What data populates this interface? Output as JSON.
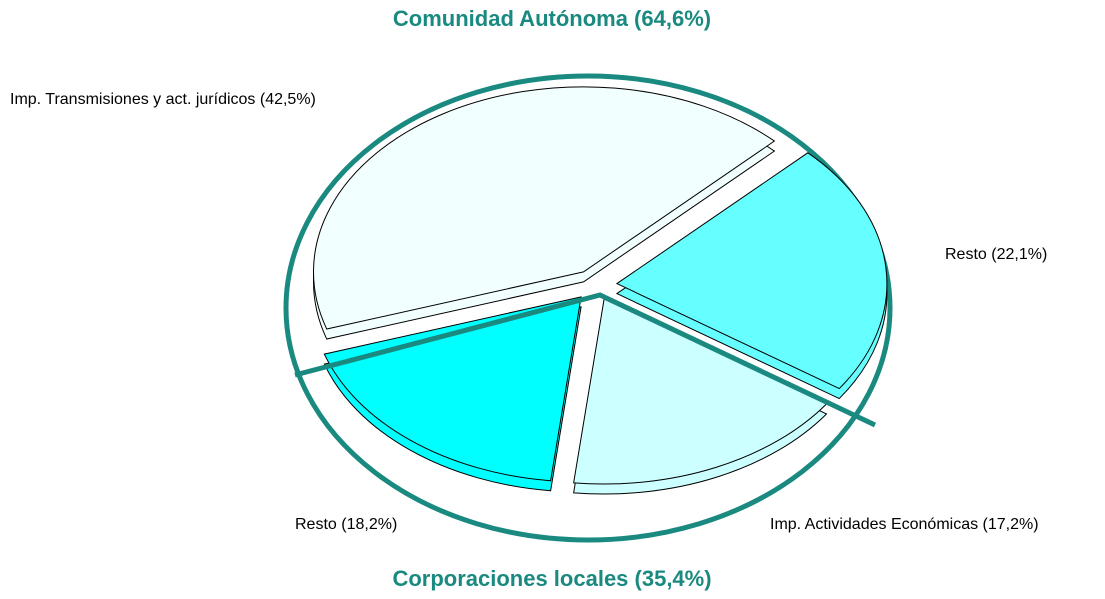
{
  "chart_data": {
    "type": "pie",
    "value_labels": [
      "Imp. Transmisiones y act. jurídicos (42,5%)",
      "Resto (22,1%)",
      "Imp. Actividades Económicas (17,2%)",
      "Resto (18,2%)"
    ],
    "values": [
      42.5,
      22.1,
      17.2,
      18.2
    ],
    "colors": [
      "#f2ffff",
      "#66ffff",
      "#ccffff",
      "#00ffff"
    ],
    "annotations": [
      {
        "text": "Comunidad Autónoma (64,6%)"
      },
      {
        "text": "Corporaciones locales (35,4%)"
      }
    ]
  }
}
